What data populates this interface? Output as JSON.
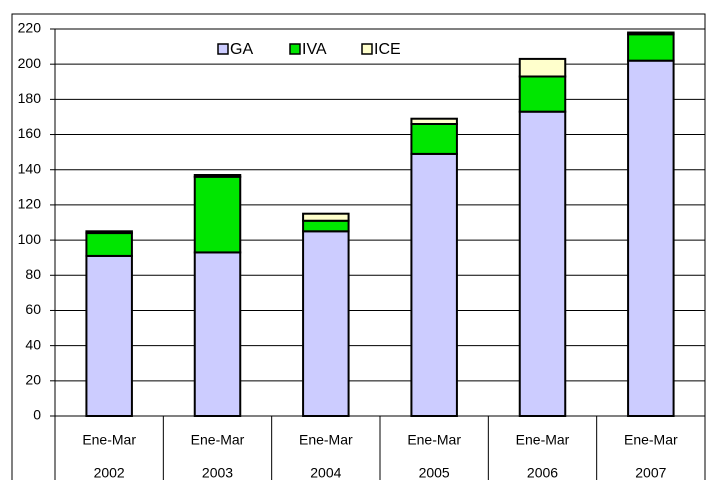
{
  "chart_data": {
    "type": "stacked-bar",
    "categories": [
      [
        "Ene-Mar",
        "2002"
      ],
      [
        "Ene-Mar",
        "2003"
      ],
      [
        "Ene-Mar",
        "2004"
      ],
      [
        "Ene-Mar",
        "2005"
      ],
      [
        "Ene-Mar",
        "2006"
      ],
      [
        "Ene-Mar",
        "2007"
      ]
    ],
    "series": [
      {
        "name": "GA",
        "color": "#ccccff",
        "values": [
          91,
          93,
          105,
          149,
          173,
          202
        ]
      },
      {
        "name": "IVA",
        "color": "#00e600",
        "values": [
          13,
          43,
          6,
          17,
          20,
          15
        ]
      },
      {
        "name": "ICE",
        "color": "#ffffcc",
        "values": [
          1,
          1,
          4,
          3,
          10,
          1
        ]
      }
    ],
    "ylim": [
      0,
      220
    ],
    "yticks": [
      0,
      20,
      40,
      60,
      80,
      100,
      120,
      140,
      160,
      180,
      200,
      220
    ],
    "grid": true,
    "legend": "top"
  }
}
